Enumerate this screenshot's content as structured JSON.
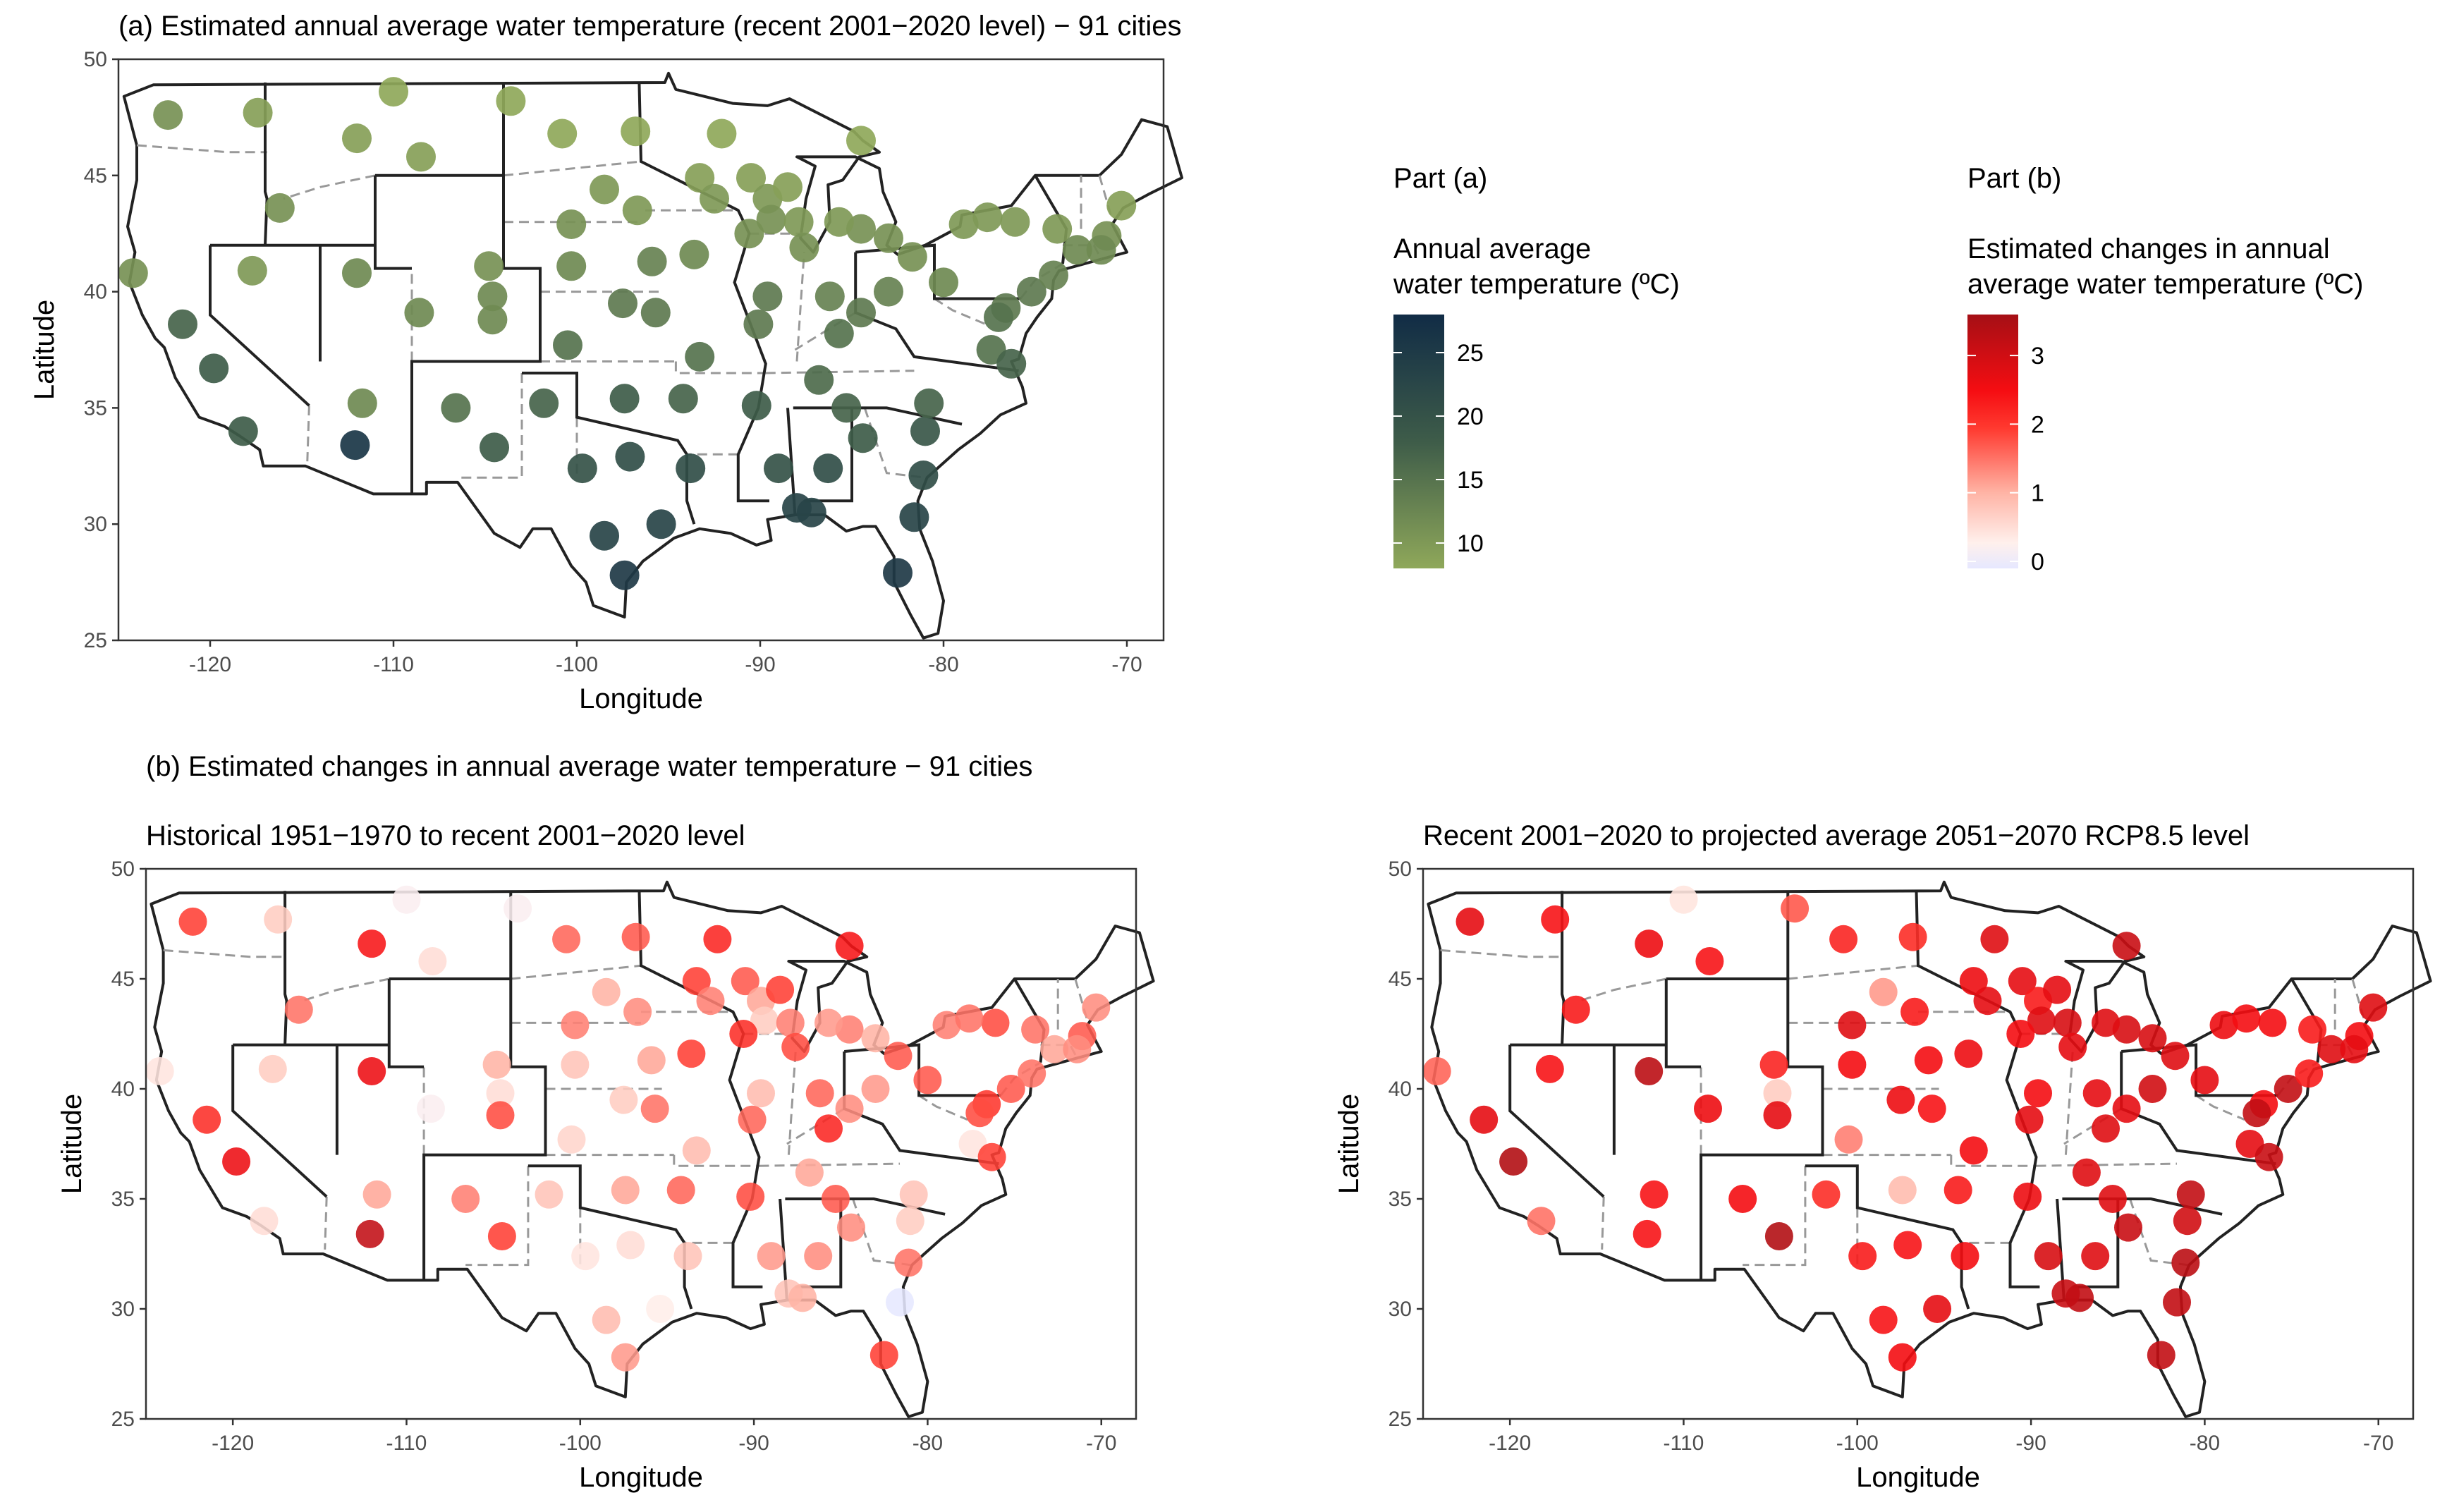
{
  "titles": {
    "panel_a": "(a) Estimated annual average water temperature (recent 2001−2020 level) − 91 cities",
    "panel_b": "(b) Estimated changes in annual average water temperature − 91 cities",
    "panel_b1": "Historical 1951−1970 to recent 2001−2020 level",
    "panel_b2": "Recent 2001−2020 to projected average 2051−2070 RCP8.5 level"
  },
  "legend_a": {
    "part": "Part (a)",
    "title_line1": "Annual average",
    "title_line2": "water temperature (ºC)",
    "ticks": [
      "25",
      "20",
      "15",
      "10"
    ],
    "colors": {
      "low": "#8fa85a",
      "mid": "#3e5c49",
      "high": "#112c46"
    }
  },
  "legend_b": {
    "part": "Part (b)",
    "title_line1": "Estimated changes in annual",
    "title_line2": "average water temperature (ºC)",
    "ticks": [
      "3",
      "2",
      "1",
      "0"
    ],
    "colors": {
      "zero": "#e6e8ff",
      "low": "#ffd0c4",
      "mid": "#ff1a1a",
      "high": "#a50f15"
    }
  },
  "axes": {
    "xlabel": "Longitude",
    "ylabel": "Latitude",
    "x_ticks": [
      "-120",
      "-110",
      "-100",
      "-90",
      "-80",
      "-70"
    ],
    "y_ticks": [
      "50",
      "45",
      "40",
      "35",
      "30",
      "25"
    ],
    "xlim": [
      -125,
      -68
    ],
    "ylim": [
      25,
      50
    ]
  },
  "chart_data": [
    {
      "type": "scatter",
      "title": "(a) Estimated annual average water temperature (recent 2001−2020 level) − 91 cities",
      "xlabel": "Longitude",
      "ylabel": "Latitude",
      "color_label": "Annual average water temperature (ºC)",
      "color_range": [
        8,
        28
      ],
      "points": [
        {
          "lon": -122.3,
          "lat": 47.6,
          "v": 11
        },
        {
          "lon": -117.4,
          "lat": 47.7,
          "v": 9
        },
        {
          "lon": -116.2,
          "lat": 43.6,
          "v": 11
        },
        {
          "lon": -112.0,
          "lat": 46.6,
          "v": 9
        },
        {
          "lon": -110.0,
          "lat": 48.6,
          "v": 7
        },
        {
          "lon": -108.5,
          "lat": 45.8,
          "v": 9
        },
        {
          "lon": -103.6,
          "lat": 48.2,
          "v": 8
        },
        {
          "lon": -100.8,
          "lat": 46.8,
          "v": 8
        },
        {
          "lon": -96.8,
          "lat": 46.9,
          "v": 8
        },
        {
          "lon": -92.1,
          "lat": 46.8,
          "v": 8
        },
        {
          "lon": -84.5,
          "lat": 46.5,
          "v": 8
        },
        {
          "lon": -124.2,
          "lat": 40.8,
          "v": 11
        },
        {
          "lon": -121.5,
          "lat": 38.6,
          "v": 17
        },
        {
          "lon": -119.8,
          "lat": 36.7,
          "v": 18
        },
        {
          "lon": -118.2,
          "lat": 34.0,
          "v": 18
        },
        {
          "lon": -117.7,
          "lat": 40.9,
          "v": 10
        },
        {
          "lon": -112.0,
          "lat": 40.8,
          "v": 12
        },
        {
          "lon": -111.7,
          "lat": 35.2,
          "v": 12
        },
        {
          "lon": -112.1,
          "lat": 33.4,
          "v": 26
        },
        {
          "lon": -108.6,
          "lat": 39.1,
          "v": 12
        },
        {
          "lon": -106.6,
          "lat": 35.0,
          "v": 15
        },
        {
          "lon": -104.8,
          "lat": 41.1,
          "v": 11
        },
        {
          "lon": -104.6,
          "lat": 39.8,
          "v": 12
        },
        {
          "lon": -104.6,
          "lat": 38.8,
          "v": 12
        },
        {
          "lon": -104.5,
          "lat": 33.3,
          "v": 18
        },
        {
          "lon": -101.8,
          "lat": 35.2,
          "v": 17
        },
        {
          "lon": -100.5,
          "lat": 37.7,
          "v": 15
        },
        {
          "lon": -100.3,
          "lat": 41.1,
          "v": 12
        },
        {
          "lon": -100.3,
          "lat": 42.9,
          "v": 11
        },
        {
          "lon": -98.5,
          "lat": 44.4,
          "v": 10
        },
        {
          "lon": -96.7,
          "lat": 43.5,
          "v": 10
        },
        {
          "lon": -95.9,
          "lat": 41.3,
          "v": 13
        },
        {
          "lon": -97.5,
          "lat": 39.5,
          "v": 14
        },
        {
          "lon": -95.7,
          "lat": 39.1,
          "v": 14
        },
        {
          "lon": -97.4,
          "lat": 35.4,
          "v": 18
        },
        {
          "lon": -94.2,
          "lat": 35.4,
          "v": 17
        },
        {
          "lon": -99.7,
          "lat": 32.4,
          "v": 20
        },
        {
          "lon": -97.1,
          "lat": 32.9,
          "v": 21
        },
        {
          "lon": -93.8,
          "lat": 32.4,
          "v": 21
        },
        {
          "lon": -98.5,
          "lat": 29.5,
          "v": 23
        },
        {
          "lon": -95.4,
          "lat": 30.0,
          "v": 23
        },
        {
          "lon": -97.4,
          "lat": 27.8,
          "v": 25
        },
        {
          "lon": -93.3,
          "lat": 44.9,
          "v": 9
        },
        {
          "lon": -92.5,
          "lat": 44.0,
          "v": 10
        },
        {
          "lon": -93.6,
          "lat": 41.6,
          "v": 12
        },
        {
          "lon": -93.3,
          "lat": 37.2,
          "v": 15
        },
        {
          "lon": -90.5,
          "lat": 44.9,
          "v": 9
        },
        {
          "lon": -89.6,
          "lat": 44.0,
          "v": 10
        },
        {
          "lon": -89.4,
          "lat": 43.1,
          "v": 11
        },
        {
          "lon": -87.9,
          "lat": 43.0,
          "v": 10
        },
        {
          "lon": -90.6,
          "lat": 42.5,
          "v": 11
        },
        {
          "lon": -89.6,
          "lat": 39.8,
          "v": 14
        },
        {
          "lon": -87.6,
          "lat": 41.9,
          "v": 11
        },
        {
          "lon": -88.5,
          "lat": 44.5,
          "v": 9
        },
        {
          "lon": -90.2,
          "lat": 35.1,
          "v": 18
        },
        {
          "lon": -89.0,
          "lat": 32.4,
          "v": 20
        },
        {
          "lon": -88.0,
          "lat": 30.7,
          "v": 23
        },
        {
          "lon": -87.2,
          "lat": 30.5,
          "v": 23
        },
        {
          "lon": -86.3,
          "lat": 32.4,
          "v": 21
        },
        {
          "lon": -86.8,
          "lat": 36.2,
          "v": 16
        },
        {
          "lon": -86.2,
          "lat": 39.8,
          "v": 13
        },
        {
          "lon": -85.7,
          "lat": 38.2,
          "v": 15
        },
        {
          "lon": -84.5,
          "lat": 42.7,
          "v": 11
        },
        {
          "lon": -85.7,
          "lat": 43.0,
          "v": 10
        },
        {
          "lon": -83.0,
          "lat": 42.3,
          "v": 11
        },
        {
          "lon": -84.5,
          "lat": 39.1,
          "v": 14
        },
        {
          "lon": -83.0,
          "lat": 40.0,
          "v": 13
        },
        {
          "lon": -85.3,
          "lat": 35.0,
          "v": 17
        },
        {
          "lon": -84.4,
          "lat": 33.7,
          "v": 18
        },
        {
          "lon": -81.0,
          "lat": 34.0,
          "v": 19
        },
        {
          "lon": -80.8,
          "lat": 35.2,
          "v": 17
        },
        {
          "lon": -81.6,
          "lat": 30.3,
          "v": 23
        },
        {
          "lon": -82.5,
          "lat": 27.9,
          "v": 25
        },
        {
          "lon": -81.1,
          "lat": 32.1,
          "v": 21
        },
        {
          "lon": -81.7,
          "lat": 41.5,
          "v": 11
        },
        {
          "lon": -80.0,
          "lat": 40.4,
          "v": 12
        },
        {
          "lon": -78.9,
          "lat": 42.9,
          "v": 10
        },
        {
          "lon": -77.4,
          "lat": 37.5,
          "v": 15
        },
        {
          "lon": -76.6,
          "lat": 39.3,
          "v": 14
        },
        {
          "lon": -77.0,
          "lat": 38.9,
          "v": 15
        },
        {
          "lon": -76.3,
          "lat": 36.9,
          "v": 17
        },
        {
          "lon": -75.2,
          "lat": 40.0,
          "v": 14
        },
        {
          "lon": -74.0,
          "lat": 40.7,
          "v": 13
        },
        {
          "lon": -73.8,
          "lat": 42.7,
          "v": 10
        },
        {
          "lon": -71.1,
          "lat": 42.4,
          "v": 11
        },
        {
          "lon": -72.7,
          "lat": 41.8,
          "v": 12
        },
        {
          "lon": -71.4,
          "lat": 41.8,
          "v": 12
        },
        {
          "lon": -70.3,
          "lat": 43.7,
          "v": 9
        },
        {
          "lon": -76.1,
          "lat": 43.0,
          "v": 10
        },
        {
          "lon": -77.6,
          "lat": 43.2,
          "v": 10
        },
        {
          "lon": -90.1,
          "lat": 38.6,
          "v": 14
        }
      ]
    },
    {
      "type": "scatter",
      "title": "Historical 1951−1970 to recent 2001−2020 level",
      "xlabel": "Longitude",
      "ylabel": "Latitude",
      "color_label": "Estimated changes in annual average water temperature (ºC)",
      "color_range": [
        0,
        3.7
      ],
      "values": [
        2.0,
        0.8,
        1.6,
        2.5,
        0.3,
        0.6,
        0.3,
        1.7,
        1.8,
        2.3,
        2.5,
        0.5,
        2.2,
        2.7,
        0.6,
        0.8,
        2.7,
        1.2,
        3.3,
        0.3,
        1.5,
        1.1,
        0.6,
        1.9,
        2.0,
        0.9,
        0.7,
        0.9,
        1.5,
        1.1,
        1.4,
        1.2,
        0.8,
        1.6,
        1.2,
        1.7,
        0.5,
        0.6,
        0.9,
        1.0,
        0.4,
        1.3,
        2.0,
        1.5,
        2.0,
        1.0,
        1.8,
        1.2,
        0.8,
        1.5,
        2.2,
        1.0,
        1.9,
        2.0,
        1.9,
        1.3,
        0.9,
        1.1,
        1.4,
        1.2,
        1.7,
        2.3,
        1.5,
        1.3,
        1.1,
        1.4,
        1.3,
        1.8,
        1.4,
        0.8,
        0.9,
        0.0,
        2.0,
        1.6,
        1.8,
        1.8,
        1.5,
        0.5,
        2.1,
        1.9,
        2.0,
        1.8,
        1.6,
        1.6,
        1.8,
        1.2,
        1.4,
        1.4,
        1.9,
        1.6,
        1.7
      ]
    },
    {
      "type": "scatter",
      "title": "Recent 2001−2020 to projected average 2051−2070 RCP8.5 level",
      "xlabel": "Longitude",
      "ylabel": "Latitude",
      "color_label": "Estimated changes in annual average water temperature (ºC)",
      "color_range": [
        0,
        3.7
      ],
      "values": [
        2.8,
        2.5,
        2.4,
        2.7,
        0.5,
        2.5,
        1.8,
        2.3,
        2.2,
        2.9,
        3.2,
        1.7,
        2.8,
        3.5,
        1.6,
        2.5,
        3.4,
        2.5,
        2.5,
        2.7,
        2.6,
        2.3,
        0.8,
        2.8,
        3.5,
        2.2,
        1.5,
        2.6,
        2.9,
        1.3,
        2.4,
        2.6,
        2.7,
        2.5,
        1.0,
        2.4,
        2.4,
        2.5,
        2.6,
        2.5,
        2.8,
        2.6,
        2.7,
        2.8,
        2.7,
        2.6,
        2.8,
        2.4,
        2.9,
        3.0,
        2.6,
        2.6,
        2.8,
        2.8,
        2.7,
        3.0,
        3.2,
        3.3,
        2.9,
        2.9,
        2.8,
        2.9,
        3.0,
        2.9,
        3.0,
        2.8,
        3.1,
        2.9,
        3.2,
        3.1,
        3.3,
        3.3,
        3.3,
        3.4,
        2.9,
        2.8,
        2.7,
        2.8,
        2.6,
        3.3,
        3.2,
        3.3,
        2.4,
        2.4,
        2.6,
        2.9,
        2.8,
        2.9,
        2.6,
        2.6,
        2.8
      ]
    }
  ]
}
